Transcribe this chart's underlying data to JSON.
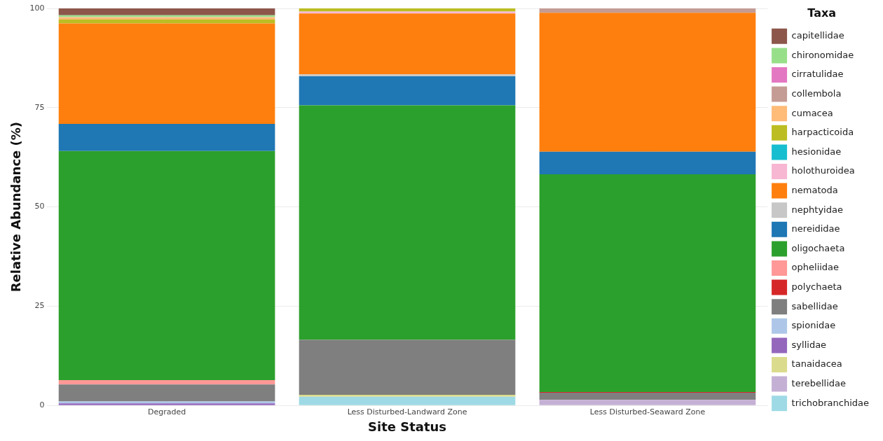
{
  "chart_data": {
    "type": "bar",
    "stacked": true,
    "xlabel": "Site Status",
    "ylabel": "Relative Abundance (%)",
    "legend_title": "Taxa",
    "categories": [
      "Degraded",
      "Less Disturbed-Landward Zone",
      "Less Disturbed-Seaward Zone"
    ],
    "ylim": [
      0,
      100
    ],
    "yticks": [
      0,
      25,
      50,
      75,
      100
    ],
    "grid": true,
    "legend": "right",
    "series": [
      {
        "name": "trichobranchidae",
        "color": "#9edae5",
        "values": [
          0,
          2.2,
          0
        ]
      },
      {
        "name": "terebellidae",
        "color": "#c5b0d5",
        "values": [
          0,
          0,
          1.4
        ]
      },
      {
        "name": "tanaidacea",
        "color": "#dbdb8d",
        "values": [
          0,
          0.5,
          0
        ]
      },
      {
        "name": "syllidae",
        "color": "#9467bd",
        "values": [
          0.5,
          0,
          0
        ]
      },
      {
        "name": "spionidae",
        "color": "#aec7e8",
        "values": [
          0.5,
          0,
          0
        ]
      },
      {
        "name": "sabellidae",
        "color": "#7f7f7f",
        "values": [
          4.3,
          13.8,
          1.8
        ]
      },
      {
        "name": "polychaeta",
        "color": "#d62728",
        "values": [
          0,
          0,
          0.2
        ]
      },
      {
        "name": "opheliidae",
        "color": "#ff9896",
        "values": [
          1.1,
          0,
          0
        ]
      },
      {
        "name": "oligochaeta",
        "color": "#2ca02c",
        "values": [
          57.7,
          59.1,
          54.8
        ]
      },
      {
        "name": "nereididae",
        "color": "#1f77b4",
        "values": [
          6.8,
          7.3,
          5.7
        ]
      },
      {
        "name": "nephtyidae",
        "color": "#c7c7c7",
        "values": [
          0,
          0.5,
          0
        ]
      },
      {
        "name": "nematoda",
        "color": "#ff7f0e",
        "values": [
          25.3,
          15.3,
          35.0
        ]
      },
      {
        "name": "holothuroidea",
        "color": "#f7b6d2",
        "values": [
          0,
          0.5,
          0
        ]
      },
      {
        "name": "hesionidae",
        "color": "#17becf",
        "values": [
          0,
          0,
          0
        ]
      },
      {
        "name": "harpacticoida",
        "color": "#bcbd22",
        "values": [
          1.0,
          0.8,
          0
        ]
      },
      {
        "name": "cumacea",
        "color": "#ffbb78",
        "values": [
          0.6,
          0,
          0
        ]
      },
      {
        "name": "collembola",
        "color": "#c49c94",
        "values": [
          0,
          0,
          1.1
        ]
      },
      {
        "name": "cirratulidae",
        "color": "#e377c2",
        "values": [
          0,
          0,
          0
        ]
      },
      {
        "name": "chironomidae",
        "color": "#98df8a",
        "values": [
          0.5,
          0,
          0
        ]
      },
      {
        "name": "capitellidae",
        "color": "#8c564b",
        "values": [
          1.7,
          0,
          0
        ]
      }
    ]
  }
}
